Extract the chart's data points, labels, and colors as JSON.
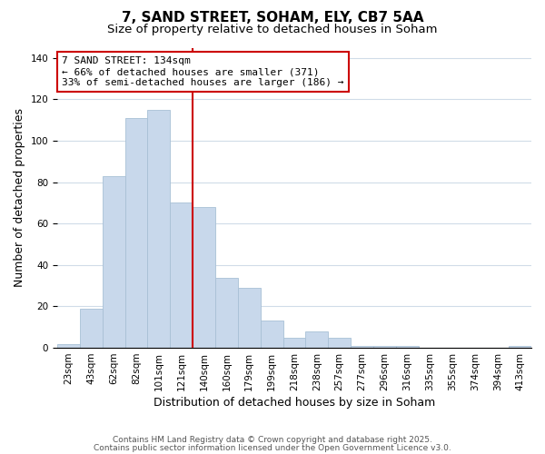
{
  "title": "7, SAND STREET, SOHAM, ELY, CB7 5AA",
  "subtitle": "Size of property relative to detached houses in Soham",
  "xlabel": "Distribution of detached houses by size in Soham",
  "ylabel": "Number of detached properties",
  "bar_color": "#c8d8eb",
  "bar_edgecolor": "#a8c0d6",
  "categories": [
    "23sqm",
    "43sqm",
    "62sqm",
    "82sqm",
    "101sqm",
    "121sqm",
    "140sqm",
    "160sqm",
    "179sqm",
    "199sqm",
    "218sqm",
    "238sqm",
    "257sqm",
    "277sqm",
    "296sqm",
    "316sqm",
    "335sqm",
    "355sqm",
    "374sqm",
    "394sqm",
    "413sqm"
  ],
  "values": [
    2,
    19,
    83,
    111,
    115,
    70,
    68,
    34,
    29,
    13,
    5,
    8,
    5,
    1,
    1,
    1,
    0,
    0,
    0,
    0,
    1
  ],
  "vline_x_idx": 6,
  "vline_color": "#cc0000",
  "annotation_title": "7 SAND STREET: 134sqm",
  "annotation_line1": "← 66% of detached houses are smaller (371)",
  "annotation_line2": "33% of semi-detached houses are larger (186) →",
  "annotation_box_edgecolor": "#cc0000",
  "annotation_fontsize": 8,
  "ylim": [
    0,
    145
  ],
  "footer1": "Contains HM Land Registry data © Crown copyright and database right 2025.",
  "footer2": "Contains public sector information licensed under the Open Government Licence v3.0.",
  "background_color": "#ffffff",
  "plot_background": "#ffffff",
  "title_fontsize": 11,
  "subtitle_fontsize": 9.5,
  "label_fontsize": 9,
  "tick_fontsize": 7.5,
  "footer_fontsize": 6.5,
  "grid_color": "#d0dce8"
}
